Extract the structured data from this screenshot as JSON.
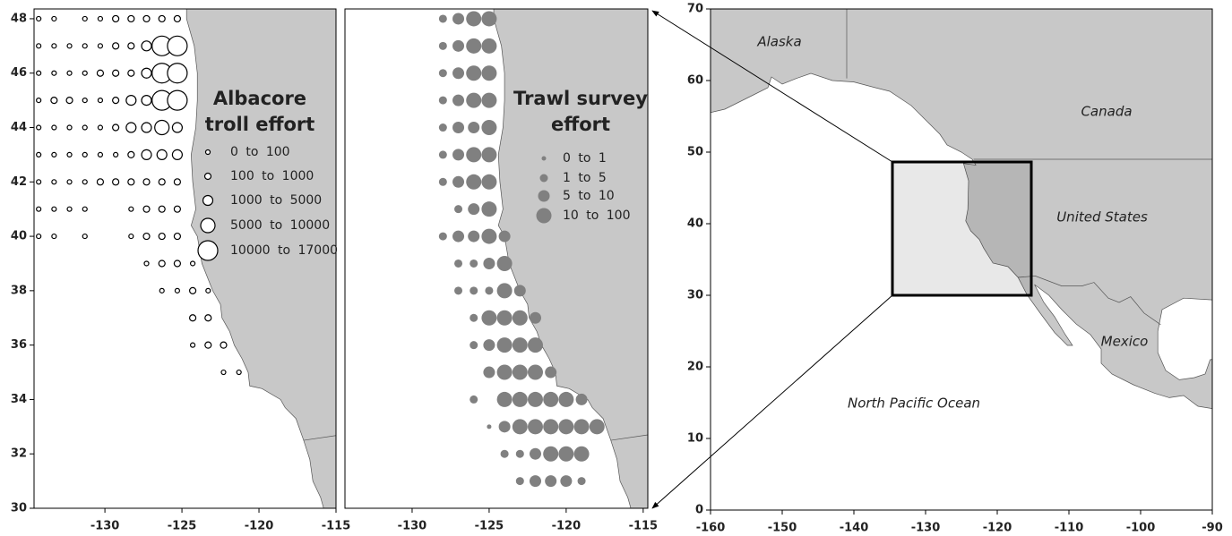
{
  "panels": [
    {
      "title_lines": [
        "Albacore",
        "troll effort"
      ],
      "xlim": [
        -134.6,
        -115
      ],
      "ylim": [
        30,
        48.36
      ],
      "xticks": [
        -130,
        -125,
        -120,
        -115
      ],
      "yticks": [
        30,
        32,
        34,
        36,
        38,
        40,
        42,
        44,
        46,
        48
      ],
      "color": "#000000",
      "filled": false,
      "series": [
        {
          "name": "0 to 100",
          "points": [
            [
              -134.3,
              48
            ],
            [
              -133.3,
              48
            ],
            [
              -131.3,
              48
            ],
            [
              -130.3,
              48
            ],
            [
              -134.3,
              47
            ],
            [
              -133.3,
              47
            ],
            [
              -132.3,
              47
            ],
            [
              -131.3,
              47
            ],
            [
              -130.3,
              47
            ],
            [
              -134.3,
              46
            ],
            [
              -133.3,
              46
            ],
            [
              -132.3,
              46
            ],
            [
              -131.3,
              46
            ],
            [
              -134.3,
              45
            ],
            [
              -131.3,
              45
            ],
            [
              -130.3,
              45
            ],
            [
              -134.3,
              44
            ],
            [
              -133.3,
              44
            ],
            [
              -132.3,
              44
            ],
            [
              -131.3,
              44
            ],
            [
              -130.3,
              44
            ],
            [
              -134.3,
              43
            ],
            [
              -133.3,
              43
            ],
            [
              -132.3,
              43
            ],
            [
              -131.3,
              43
            ],
            [
              -130.3,
              43
            ],
            [
              -129.3,
              43
            ],
            [
              -134.3,
              42
            ],
            [
              -133.3,
              42
            ],
            [
              -132.3,
              42
            ],
            [
              -131.3,
              42
            ],
            [
              -134.3,
              41
            ],
            [
              -133.3,
              41
            ],
            [
              -132.3,
              41
            ],
            [
              -131.3,
              41
            ],
            [
              -128.3,
              41
            ],
            [
              -134.3,
              40
            ],
            [
              -133.3,
              40
            ],
            [
              -131.3,
              40
            ],
            [
              -128.3,
              40
            ],
            [
              -127.3,
              39
            ],
            [
              -124.3,
              39
            ],
            [
              -126.3,
              38
            ],
            [
              -125.3,
              38
            ],
            [
              -123.3,
              38
            ],
            [
              -124.3,
              36
            ],
            [
              -122.3,
              35
            ],
            [
              -121.3,
              35
            ]
          ]
        },
        {
          "name": "100 to 1000",
          "points": [
            [
              -129.3,
              48
            ],
            [
              -128.3,
              48
            ],
            [
              -127.3,
              48
            ],
            [
              -126.3,
              48
            ],
            [
              -125.3,
              48
            ],
            [
              -129.3,
              47
            ],
            [
              -128.3,
              47
            ],
            [
              -130.3,
              46
            ],
            [
              -129.3,
              46
            ],
            [
              -128.3,
              46
            ],
            [
              -133.3,
              45
            ],
            [
              -132.3,
              45
            ],
            [
              -129.3,
              45
            ],
            [
              -129.3,
              44
            ],
            [
              -128.3,
              43
            ],
            [
              -130.3,
              42
            ],
            [
              -129.3,
              42
            ],
            [
              -128.3,
              42
            ],
            [
              -127.3,
              42
            ],
            [
              -126.3,
              42
            ],
            [
              -125.3,
              42
            ],
            [
              -127.3,
              41
            ],
            [
              -126.3,
              41
            ],
            [
              -125.3,
              41
            ],
            [
              -127.3,
              40
            ],
            [
              -126.3,
              40
            ],
            [
              -125.3,
              40
            ],
            [
              -126.3,
              39
            ],
            [
              -125.3,
              39
            ],
            [
              -124.3,
              38
            ],
            [
              -124.3,
              37
            ],
            [
              -123.3,
              37
            ],
            [
              -123.3,
              36
            ],
            [
              -122.3,
              36
            ]
          ]
        },
        {
          "name": "1000 to 5000",
          "points": [
            [
              -127.3,
              47
            ],
            [
              -127.3,
              46
            ],
            [
              -128.3,
              45
            ],
            [
              -127.3,
              45
            ],
            [
              -128.3,
              44
            ],
            [
              -127.3,
              44
            ],
            [
              -125.3,
              44
            ],
            [
              -127.3,
              43
            ],
            [
              -126.3,
              43
            ],
            [
              -125.3,
              43
            ]
          ]
        },
        {
          "name": "5000 to 10000",
          "points": [
            [
              -126.3,
              44
            ]
          ]
        },
        {
          "name": "10000 to 17000",
          "points": [
            [
              -126.3,
              47
            ],
            [
              -125.3,
              47
            ],
            [
              -126.3,
              46
            ],
            [
              -125.3,
              46
            ],
            [
              -126.3,
              45
            ],
            [
              -125.3,
              45
            ]
          ]
        }
      ]
    },
    {
      "title_lines": [
        "Trawl survey",
        "effort"
      ],
      "xlim": [
        -134.36,
        -114.7
      ],
      "ylim": [
        30,
        48.36
      ],
      "xticks": [
        -130,
        -125,
        -120,
        -115
      ],
      "color": "#808080",
      "filled": true,
      "series": [
        {
          "name": "0 to 1",
          "points": [
            [
              -125,
              33
            ]
          ]
        },
        {
          "name": "1 to 5",
          "points": [
            [
              -128,
              48
            ],
            [
              -128,
              47
            ],
            [
              -128,
              46
            ],
            [
              -128,
              45
            ],
            [
              -128,
              44
            ],
            [
              -128,
              43
            ],
            [
              -128,
              42
            ],
            [
              -127,
              41
            ],
            [
              -128,
              40
            ],
            [
              -127,
              39
            ],
            [
              -126,
              39
            ],
            [
              -127,
              38
            ],
            [
              -126,
              38
            ],
            [
              -125,
              38
            ],
            [
              -126,
              37
            ],
            [
              -126,
              36
            ],
            [
              -126,
              34
            ],
            [
              -124,
              32
            ],
            [
              -123,
              32
            ],
            [
              -123,
              31
            ],
            [
              -119,
              31
            ]
          ]
        },
        {
          "name": "5 to 10",
          "points": [
            [
              -127,
              48
            ],
            [
              -127,
              47
            ],
            [
              -127,
              46
            ],
            [
              -127,
              45
            ],
            [
              -127,
              44
            ],
            [
              -127,
              43
            ],
            [
              -127,
              42
            ],
            [
              -126,
              44
            ],
            [
              -126,
              41
            ],
            [
              -127,
              40
            ],
            [
              -126,
              40
            ],
            [
              -124,
              40
            ],
            [
              -125,
              39
            ],
            [
              -123,
              38
            ],
            [
              -122,
              37
            ],
            [
              -125,
              36
            ],
            [
              -125,
              35
            ],
            [
              -121,
              35
            ],
            [
              -119,
              34
            ],
            [
              -124,
              33
            ],
            [
              -122,
              32
            ],
            [
              -122,
              31
            ],
            [
              -121,
              31
            ],
            [
              -120,
              31
            ]
          ]
        },
        {
          "name": "10 to 100",
          "points": [
            [
              -126,
              48
            ],
            [
              -125,
              48
            ],
            [
              -126,
              47
            ],
            [
              -125,
              47
            ],
            [
              -126,
              46
            ],
            [
              -125,
              46
            ],
            [
              -126,
              45
            ],
            [
              -125,
              45
            ],
            [
              -125,
              44
            ],
            [
              -126,
              43
            ],
            [
              -125,
              43
            ],
            [
              -126,
              42
            ],
            [
              -125,
              42
            ],
            [
              -125,
              41
            ],
            [
              -125,
              40
            ],
            [
              -124,
              39
            ],
            [
              -124,
              38
            ],
            [
              -125,
              37
            ],
            [
              -124,
              37
            ],
            [
              -123,
              37
            ],
            [
              -124,
              36
            ],
            [
              -123,
              36
            ],
            [
              -122,
              36
            ],
            [
              -124,
              35
            ],
            [
              -123,
              35
            ],
            [
              -122,
              35
            ],
            [
              -124,
              34
            ],
            [
              -123,
              34
            ],
            [
              -122,
              34
            ],
            [
              -121,
              34
            ],
            [
              -120,
              34
            ],
            [
              -123,
              33
            ],
            [
              -122,
              33
            ],
            [
              -121,
              33
            ],
            [
              -120,
              33
            ],
            [
              -119,
              33
            ],
            [
              -118,
              33
            ],
            [
              -121,
              32
            ],
            [
              -120,
              32
            ],
            [
              -119,
              32
            ]
          ]
        }
      ]
    },
    {
      "xlim": [
        -160,
        -90
      ],
      "ylim": [
        0,
        70
      ],
      "xticks": [
        -160,
        -150,
        -140,
        -130,
        -120,
        -110,
        -100,
        -90
      ],
      "yticks": [
        0,
        10,
        20,
        30,
        40,
        50,
        60,
        70
      ],
      "labels": [
        "Alaska",
        "Canada",
        "United States",
        "Mexico",
        "North Pacific Ocean"
      ]
    }
  ]
}
